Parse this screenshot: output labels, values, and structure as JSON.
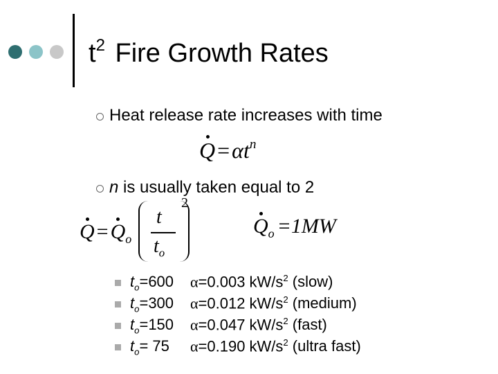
{
  "title": {
    "base": "t",
    "sup": "2",
    "rest": "Fire Growth Rates"
  },
  "bullets": [
    {
      "text": "Heat release rate increases with time"
    },
    {
      "italic": "n",
      "text": "is usually taken equal to 2"
    }
  ],
  "equations": {
    "growth": {
      "lhs": "Q",
      "op": "=",
      "rhs": "αt",
      "exp": "n"
    },
    "normalized": {
      "lhs": "Q",
      "op": "=",
      "q": "Q",
      "q_sub": "o",
      "num": "t",
      "den": "t",
      "den_sub": "o",
      "exp": "2"
    },
    "reference": {
      "lhs": "Q",
      "lhs_sub": "o",
      "rhs": "=1MW"
    }
  },
  "rows": [
    {
      "t": "t",
      "sub": "o",
      "time": "=600",
      "alpha": "α",
      "value": "=0.003 kW/s",
      "sup": "2",
      "note": "(slow)"
    },
    {
      "t": "t",
      "sub": "o",
      "time": "=300",
      "alpha": "α",
      "value": "=0.012 kW/s",
      "sup": "2",
      "note": "(medium)"
    },
    {
      "t": "t",
      "sub": "o",
      "time": "=150",
      "alpha": "α",
      "value": "=0.047 kW/s",
      "sup": "2",
      "note": "(fast)"
    },
    {
      "t": "t",
      "sub": "o",
      "time": "= 75",
      "alpha": "α",
      "value": "=0.190 kW/s",
      "sup": "2",
      "note": "(ultra fast)"
    }
  ]
}
